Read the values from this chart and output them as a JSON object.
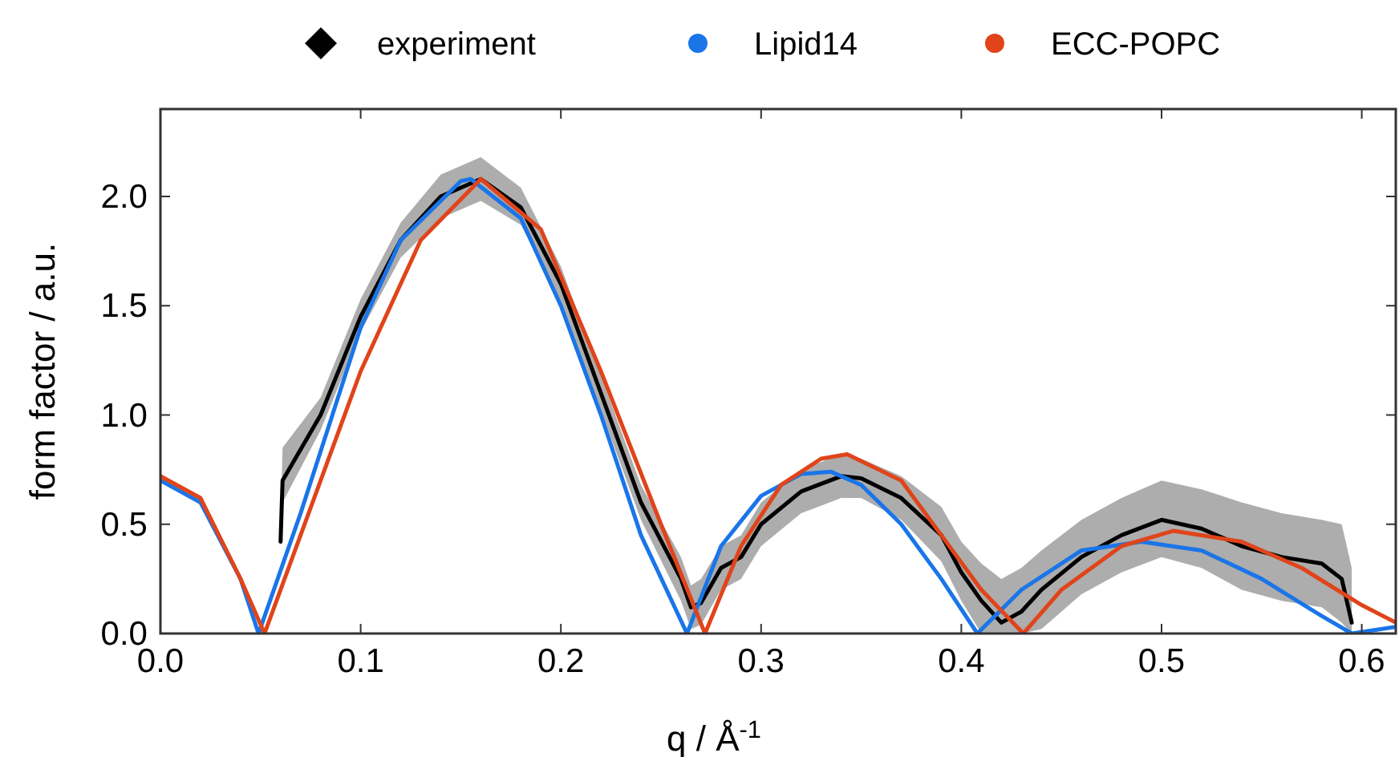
{
  "chart_data": {
    "type": "line",
    "xlabel": "q / Å$^{-1}$",
    "ylabel": "form factor / a.u.",
    "xlim": [
      0,
      0.617
    ],
    "ylim": [
      0,
      2.4
    ],
    "xticks": [
      {
        "value": 0,
        "label": "0.0"
      },
      0.1,
      0.2,
      0.3,
      0.4,
      0.5,
      0.6
    ],
    "yticks": [
      {
        "value": 0,
        "label": "0.0"
      },
      0.5,
      {
        "value": 1,
        "label": "1.0"
      },
      1.5,
      {
        "value": 2,
        "label": "2.0"
      }
    ],
    "grid": false,
    "legend": "top",
    "line_style": "solid",
    "series": [
      {
        "name": "experiment",
        "color": "#000000",
        "x": [
          0.06,
          0.061,
          0.08,
          0.1,
          0.12,
          0.14,
          0.16,
          0.18,
          0.2,
          0.22,
          0.24,
          0.26,
          0.265,
          0.27,
          0.28,
          0.29,
          0.3,
          0.32,
          0.34,
          0.35,
          0.37,
          0.39,
          0.4,
          0.41,
          0.42,
          0.43,
          0.44,
          0.46,
          0.48,
          0.5,
          0.52,
          0.54,
          0.56,
          0.58,
          0.59,
          0.595
        ],
        "values": [
          0.42,
          0.7,
          1.0,
          1.45,
          1.8,
          2.0,
          2.08,
          1.95,
          1.6,
          1.1,
          0.6,
          0.25,
          0.12,
          0.14,
          0.3,
          0.35,
          0.5,
          0.65,
          0.72,
          0.71,
          0.62,
          0.45,
          0.28,
          0.15,
          0.05,
          0.1,
          0.2,
          0.35,
          0.45,
          0.52,
          0.48,
          0.4,
          0.35,
          0.32,
          0.25,
          0.05
        ],
        "lower": [
          0.4,
          0.6,
          0.93,
          1.38,
          1.72,
          1.9,
          1.98,
          1.87,
          1.52,
          1.02,
          0.52,
          0.15,
          0.02,
          0.04,
          0.2,
          0.25,
          0.4,
          0.55,
          0.62,
          0.62,
          0.52,
          0.33,
          0.15,
          0,
          0,
          0,
          0.02,
          0.18,
          0.28,
          0.35,
          0.3,
          0.2,
          0.15,
          0.12,
          0.05,
          0
        ],
        "upper": [
          0.5,
          0.85,
          1.08,
          1.53,
          1.88,
          2.1,
          2.18,
          2.04,
          1.68,
          1.18,
          0.68,
          0.35,
          0.22,
          0.25,
          0.4,
          0.45,
          0.6,
          0.75,
          0.82,
          0.8,
          0.72,
          0.58,
          0.42,
          0.32,
          0.25,
          0.3,
          0.38,
          0.52,
          0.62,
          0.7,
          0.66,
          0.6,
          0.55,
          0.52,
          0.5,
          0.3
        ]
      },
      {
        "name": "Lipid14",
        "color": "#1a75e8",
        "x": [
          0,
          0.02,
          0.04,
          0.049,
          0.07,
          0.1,
          0.12,
          0.15,
          0.155,
          0.18,
          0.2,
          0.22,
          0.24,
          0.263,
          0.28,
          0.3,
          0.32,
          0.335,
          0.35,
          0.37,
          0.39,
          0.408,
          0.43,
          0.46,
          0.49,
          0.52,
          0.55,
          0.58,
          0.595,
          0.617
        ],
        "values": [
          0.7,
          0.6,
          0.25,
          0,
          0.55,
          1.4,
          1.8,
          2.07,
          2.08,
          1.9,
          1.5,
          1.0,
          0.45,
          0,
          0.4,
          0.63,
          0.73,
          0.74,
          0.68,
          0.5,
          0.25,
          0,
          0.2,
          0.38,
          0.42,
          0.38,
          0.25,
          0.08,
          0,
          0.03
        ]
      },
      {
        "name": "ECC-POPC",
        "color": "#e0441a",
        "x": [
          0,
          0.02,
          0.04,
          0.052,
          0.07,
          0.1,
          0.13,
          0.16,
          0.19,
          0.22,
          0.25,
          0.272,
          0.29,
          0.31,
          0.33,
          0.343,
          0.37,
          0.39,
          0.41,
          0.431,
          0.45,
          0.48,
          0.506,
          0.54,
          0.57,
          0.6,
          0.617
        ],
        "values": [
          0.72,
          0.62,
          0.25,
          0,
          0.45,
          1.2,
          1.8,
          2.08,
          1.85,
          1.2,
          0.5,
          0,
          0.4,
          0.68,
          0.8,
          0.82,
          0.7,
          0.45,
          0.2,
          0,
          0.2,
          0.4,
          0.47,
          0.42,
          0.3,
          0.13,
          0.05
        ]
      }
    ]
  }
}
